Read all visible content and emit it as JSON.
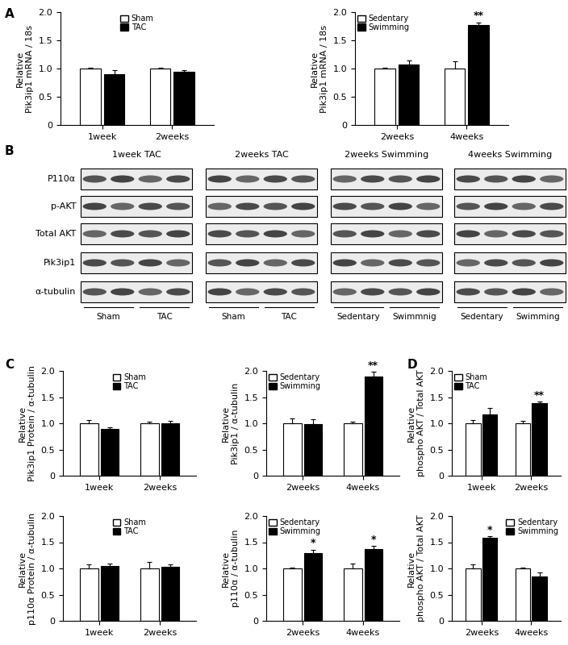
{
  "panel_labels": [
    "A",
    "B",
    "C",
    "D"
  ],
  "blot": {
    "rows": [
      "P110α",
      "p-AKT",
      "Total AKT",
      "Pik3ip1",
      "α-tubulin"
    ],
    "panels": [
      {
        "title": "1week TAC",
        "groups": [
          "Sham",
          "TAC"
        ]
      },
      {
        "title": "2weeks TAC",
        "groups": [
          "Sham",
          "TAC"
        ]
      },
      {
        "title": "2weeks Swimming",
        "groups": [
          "Sedentary",
          "Swimmnig"
        ]
      },
      {
        "title": "4weeks Swimming",
        "groups": [
          "Sedentary",
          "Swimming"
        ]
      }
    ]
  },
  "chart_data": [
    {
      "type": "bar",
      "ylabel": "Relative\nPik3ip1 mRNA / 18s",
      "categories": [
        "1week",
        "2weeks"
      ],
      "series": [
        {
          "name": "Sham",
          "color": "#ffffff",
          "values": [
            1.0,
            1.0
          ],
          "errors": [
            0.02,
            0.02
          ],
          "significance": [
            null,
            null
          ]
        },
        {
          "name": "TAC",
          "color": "#000000",
          "values": [
            0.9,
            0.95
          ],
          "errors": [
            0.07,
            0.02
          ],
          "significance": [
            null,
            null
          ]
        }
      ],
      "ylim": [
        0,
        2
      ],
      "yticks": [
        0,
        0.5,
        {
          "value": 1,
          "label": "1.0"
        },
        1.5,
        {
          "value": 2,
          "label": "2.0"
        }
      ],
      "legend": "upper center"
    },
    {
      "type": "bar",
      "ylabel": "Relative\nPik3ip1 mRNA / 18s",
      "categories": [
        "2weeks",
        "4weeks"
      ],
      "series": [
        {
          "name": "Sedentary",
          "color": "#ffffff",
          "values": [
            1.0,
            1.0
          ],
          "errors": [
            0.01,
            0.13
          ],
          "significance": [
            null,
            null
          ]
        },
        {
          "name": "Swimming",
          "color": "#000000",
          "values": [
            1.07,
            1.77
          ],
          "errors": [
            0.07,
            0.05
          ],
          "significance": [
            null,
            "**"
          ]
        }
      ],
      "ylim": [
        0,
        2
      ],
      "yticks": [
        0,
        0.5,
        {
          "value": 1,
          "label": "1.0"
        },
        1.5,
        {
          "value": 2,
          "label": "2.0"
        }
      ],
      "legend": "upper left"
    },
    {
      "type": "bar",
      "ylabel": "Relative\nPik3ip1 Protein / α-tubulin",
      "categories": [
        "1week",
        "2weeks"
      ],
      "series": [
        {
          "name": "Sham",
          "color": "#ffffff",
          "values": [
            1.0,
            1.0
          ],
          "errors": [
            0.06,
            0.03
          ],
          "significance": [
            null,
            null
          ]
        },
        {
          "name": "TAC",
          "color": "#000000",
          "values": [
            0.9,
            1.0
          ],
          "errors": [
            0.03,
            0.04
          ],
          "significance": [
            null,
            null
          ]
        }
      ],
      "ylim": [
        0,
        2
      ],
      "yticks": [
        0,
        0.5,
        {
          "value": 1,
          "label": "1.0"
        },
        1.5,
        {
          "value": 2,
          "label": "2.0"
        }
      ],
      "legend": "upper center"
    },
    {
      "type": "bar",
      "ylabel": "Relative\nPik3ip1 / α-tubulin",
      "categories": [
        "2weeks",
        "4weeks"
      ],
      "series": [
        {
          "name": "Sedentary",
          "color": "#ffffff",
          "values": [
            1.0,
            1.0
          ],
          "errors": [
            0.1,
            0.03
          ],
          "significance": [
            null,
            null
          ]
        },
        {
          "name": "Swimming",
          "color": "#000000",
          "values": [
            0.98,
            1.9
          ],
          "errors": [
            0.1,
            0.08
          ],
          "significance": [
            null,
            "**"
          ]
        }
      ],
      "ylim": [
        0,
        2
      ],
      "yticks": [
        0,
        0.5,
        {
          "value": 1,
          "label": "1.0"
        },
        1.5,
        {
          "value": 2,
          "label": "2.0"
        }
      ],
      "legend": "upper left"
    },
    {
      "type": "bar",
      "ylabel": "Relative\np110α Protein / α-tubulin",
      "categories": [
        "1week",
        "2weeks"
      ],
      "series": [
        {
          "name": "Sham",
          "color": "#ffffff",
          "values": [
            1.0,
            1.0
          ],
          "errors": [
            0.08,
            0.12
          ],
          "significance": [
            null,
            null
          ]
        },
        {
          "name": "TAC",
          "color": "#000000",
          "values": [
            1.05,
            1.03
          ],
          "errors": [
            0.04,
            0.04
          ],
          "significance": [
            null,
            null
          ]
        }
      ],
      "ylim": [
        0,
        2
      ],
      "yticks": [
        0,
        0.5,
        {
          "value": 1,
          "label": "1.0"
        },
        1.5,
        {
          "value": 2,
          "label": "2.0"
        }
      ],
      "legend": "upper center"
    },
    {
      "type": "bar",
      "ylabel": "Relative\np110α / α-tubulin",
      "categories": [
        "2weeks",
        "4weeks"
      ],
      "series": [
        {
          "name": "Sedentary",
          "color": "#ffffff",
          "values": [
            1.0,
            1.0
          ],
          "errors": [
            0.02,
            0.1
          ],
          "significance": [
            null,
            null
          ]
        },
        {
          "name": "Swimming",
          "color": "#000000",
          "values": [
            1.3,
            1.37
          ],
          "errors": [
            0.06,
            0.06
          ],
          "significance": [
            "*",
            "*"
          ]
        }
      ],
      "ylim": [
        0,
        2
      ],
      "yticks": [
        0,
        0.5,
        {
          "value": 1,
          "label": "1.0"
        },
        1.5,
        {
          "value": 2,
          "label": "2.0"
        }
      ],
      "legend": "upper left"
    },
    {
      "type": "bar",
      "ylabel": "Relative\nphospho AKT / Total AKT",
      "categories": [
        "1week",
        "2weeks"
      ],
      "series": [
        {
          "name": "Sham",
          "color": "#ffffff",
          "values": [
            1.0,
            1.0
          ],
          "errors": [
            0.06,
            0.04
          ],
          "significance": [
            null,
            null
          ]
        },
        {
          "name": "TAC",
          "color": "#000000",
          "values": [
            1.17,
            1.38
          ],
          "errors": [
            0.12,
            0.03
          ],
          "significance": [
            null,
            "**"
          ]
        }
      ],
      "ylim": [
        0,
        2
      ],
      "yticks": [
        0,
        0.5,
        {
          "value": 1,
          "label": "1.0"
        },
        1.5,
        {
          "value": 2,
          "label": "2.0"
        }
      ],
      "legend": "upper left"
    },
    {
      "type": "bar",
      "ylabel": "Relative\nphospho AKT / Total AKT",
      "categories": [
        "2weeks",
        "4weeks"
      ],
      "series": [
        {
          "name": "Sedentary",
          "color": "#ffffff",
          "values": [
            1.0,
            1.0
          ],
          "errors": [
            0.08,
            0.02
          ],
          "significance": [
            null,
            null
          ]
        },
        {
          "name": "Swimming",
          "color": "#000000",
          "values": [
            1.58,
            0.85
          ],
          "errors": [
            0.03,
            0.07
          ],
          "significance": [
            "*",
            null
          ]
        }
      ],
      "ylim": [
        0,
        2
      ],
      "yticks": [
        0,
        0.5,
        {
          "value": 1,
          "label": "1.0"
        },
        1.5,
        {
          "value": 2,
          "label": "2.0"
        }
      ],
      "legend": "upper right"
    }
  ]
}
